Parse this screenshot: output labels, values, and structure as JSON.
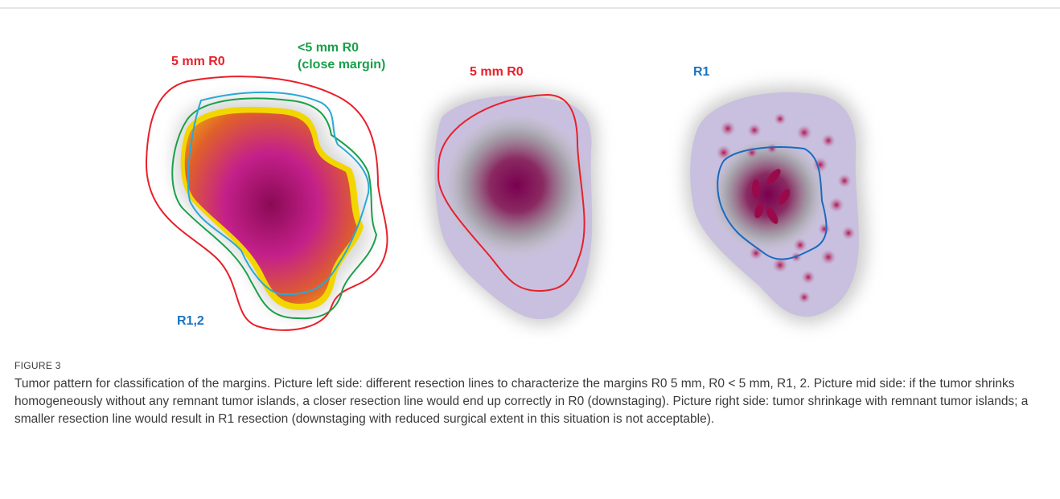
{
  "figure": {
    "panels": [
      {
        "labels": [
          "5 mm R0",
          "<5 mm R0",
          "(close margin)",
          "R1,2"
        ]
      },
      {
        "labels": [
          "5 mm R0"
        ]
      },
      {
        "labels": [
          "R1"
        ]
      }
    ]
  },
  "caption": {
    "label": "FIGURE 3",
    "text": "Tumor pattern for classification of the margins. Picture left side: different resection lines to characterize the margins R0 5 mm, R0 < 5 mm, R1, 2. Picture mid side: if the tumor shrinks homogeneously without any remnant tumor islands, a closer resection line would end up correctly in R0 (downstaging). Picture right side: tumor shrinkage with remnant tumor islands; a smaller resection line would result in R1 resection (downstaging with reduced surgical extent in this situation is not acceptable)."
  }
}
